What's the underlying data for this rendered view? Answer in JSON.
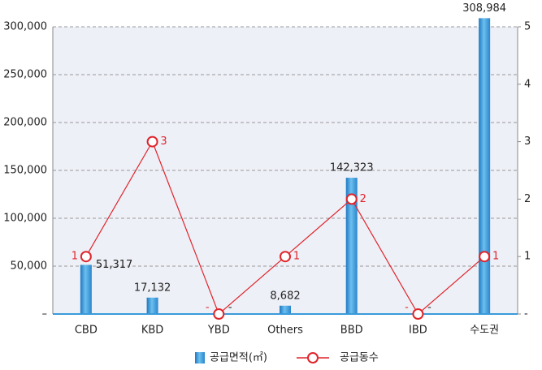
{
  "chart_data": {
    "type": "bar+line",
    "categories": [
      "CBD",
      "KBD",
      "YBD",
      "Others",
      "BBD",
      "IBD",
      "수도권"
    ],
    "series": [
      {
        "name": "공급면적(㎡)",
        "type": "bar",
        "color": "#3a9ad9",
        "values": [
          51317,
          17132,
          0,
          8682,
          142323,
          0,
          308984
        ],
        "value_labels": [
          "51,317",
          "17,132",
          "-",
          "8,682",
          "142,323",
          "-",
          "308,984"
        ]
      },
      {
        "name": "공급동수",
        "type": "line",
        "axis": "y2",
        "color": "#e0242a",
        "values": [
          1,
          3,
          0,
          1,
          2,
          0,
          1
        ],
        "value_labels": [
          "1",
          "3",
          "-",
          "1",
          "2",
          "-",
          "1"
        ]
      }
    ],
    "ylim": [
      0,
      300000
    ],
    "yticks": [
      {
        "value": 0,
        "label": "–"
      },
      {
        "value": 50000,
        "label": "50,000"
      },
      {
        "value": 100000,
        "label": "100,000"
      },
      {
        "value": 150000,
        "label": "150,000"
      },
      {
        "value": 200000,
        "label": "200,000"
      },
      {
        "value": 250000,
        "label": "250,000"
      },
      {
        "value": 300000,
        "label": "300,000"
      }
    ],
    "y2lim": [
      0,
      5
    ],
    "y2ticks": [
      {
        "value": 0,
        "label": "-"
      },
      1,
      2,
      3,
      4,
      5
    ],
    "grid": true,
    "legend": "bottom"
  }
}
